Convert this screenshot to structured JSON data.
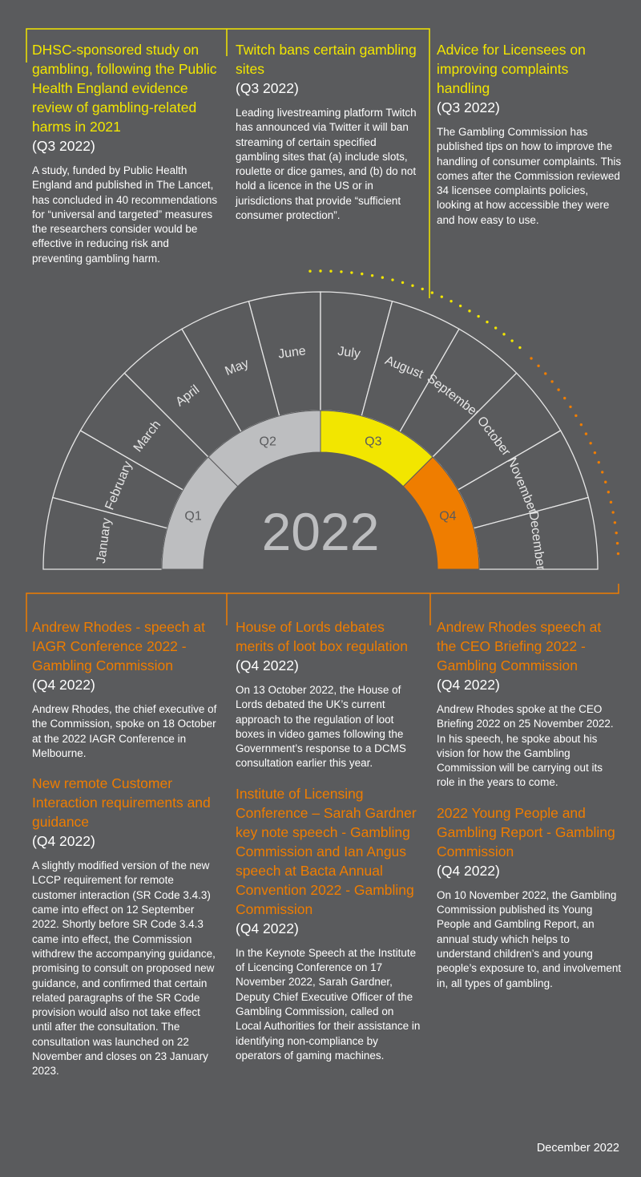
{
  "year": "2022",
  "quarters": [
    {
      "label": "Q1",
      "color": "#bdbec0"
    },
    {
      "label": "Q2",
      "color": "#bdbec0"
    },
    {
      "label": "Q3",
      "color": "#f2e600"
    },
    {
      "label": "Q4",
      "color": "#ef7d00"
    }
  ],
  "months": [
    "January",
    "February",
    "March",
    "April",
    "May",
    "June",
    "July",
    "August",
    "September",
    "October",
    "November",
    "December"
  ],
  "colors": {
    "background": "#5a5b5d",
    "yellow": "#f2e600",
    "orange": "#ef7d00",
    "grey_ring": "#bdbec0"
  },
  "top_items": [
    {
      "title": "DHSC-sponsored study on gambling, following the Public Health England evidence review of gambling-related harms in 2021",
      "period": "(Q3 2022)",
      "body": "A study, funded by Public Health England and published in The Lancet, has concluded in 40 recommendations for “universal and targeted” measures the researchers consider would be effective in reducing risk and preventing gambling harm."
    },
    {
      "title": "Twitch bans certain gambling sites",
      "period": "(Q3 2022)",
      "body": "Leading livestreaming platform Twitch has announced via Twitter it will  ban streaming of certain specified gambling sites that (a) include slots, roulette or dice games, and (b) do not hold a licence in the US or in jurisdictions that provide “sufficient consumer protection”."
    },
    {
      "title": "Advice for Licensees on improving complaints handling",
      "period": "(Q3 2022)",
      "body": "The Gambling Commission has published tips on how to improve the handling of consumer complaints. This comes after the Commission reviewed 34 licensee complaints policies, looking at how accessible they were and how easy to use."
    }
  ],
  "bottom_columns": [
    [
      {
        "title": "Andrew Rhodes - speech at IAGR Conference 2022 - Gambling Commission",
        "period": "(Q4 2022)",
        "body": "Andrew Rhodes, the chief executive of the Commission, spoke on 18 October at the 2022 IAGR Conference in Melbourne."
      },
      {
        "title": "New remote Customer Interaction requirements and guidance",
        "period": "(Q4 2022)",
        "body": "A slightly modified version of the new LCCP requirement for remote customer interaction (SR Code 3.4.3) came into effect on 12 September 2022.  Shortly before SR Code 3.4.3 came into effect, the Commission withdrew the accompanying guidance, promising to consult on proposed new guidance, and confirmed that certain related paragraphs of the SR Code provision would also not take effect until after the consultation. The consultation was launched on 22 November and closes on 23 January 2023."
      }
    ],
    [
      {
        "title": "House of Lords debates merits of loot box regulation",
        "period": "(Q4 2022)",
        "body": "On 13 October 2022, the House of Lords debated the UK’s current approach to the regulation of loot boxes in video games following the Government’s response to a DCMS consultation earlier this year."
      },
      {
        "title": "Institute of Licensing Conference – Sarah Gardner key note speech - Gambling Commission and Ian Angus speech at Bacta Annual Convention 2022 - Gambling Commission",
        "period": "(Q4 2022)",
        "body": "In the Keynote Speech at the Institute of Licencing Conference on 17 November 2022, Sarah Gardner, Deputy Chief Executive Officer of the Gambling Commission, called on Local Authorities for their assistance in identifying non-compliance by operators of gaming machines."
      }
    ],
    [
      {
        "title": "Andrew Rhodes speech at the CEO Briefing 2022 - Gambling Commission",
        "period": "(Q4 2022)",
        "body": "Andrew Rhodes spoke at the CEO Briefing 2022 on 25 November 2022. In his speech, he spoke about his vision for how the Gambling Commission will be carrying out its role in the years to come."
      },
      {
        "title": "2022 Young People and Gambling Report - Gambling Commission",
        "period": "(Q4 2022)",
        "body": "On 10 November 2022, the Gambling Commission published its Young People and Gambling Report, an annual study which helps to understand children’s and young people’s exposure to, and involvement in, all types of gambling."
      }
    ]
  ],
  "footer": "December 2022"
}
